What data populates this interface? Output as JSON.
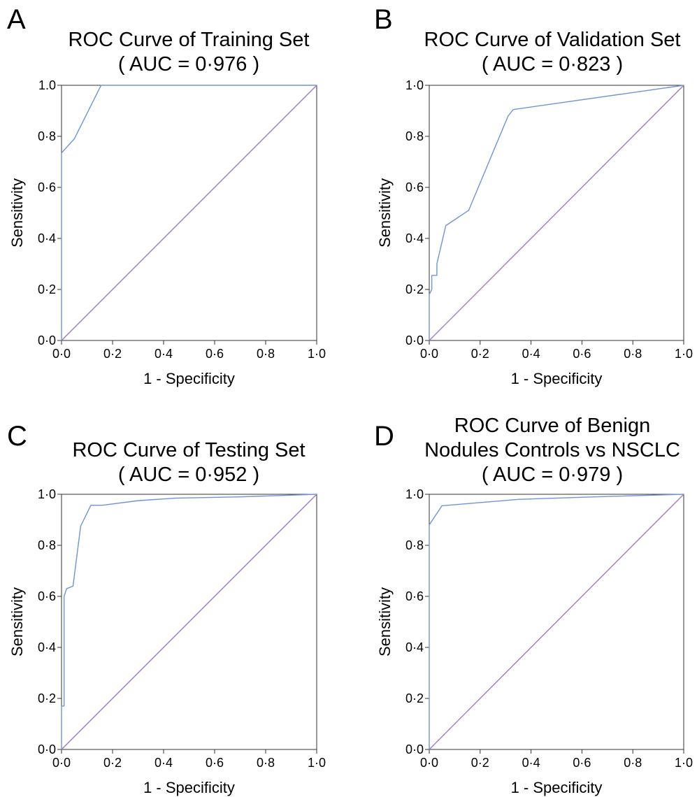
{
  "panels": [
    {
      "letter": "A",
      "title_lines": [
        "ROC Curve of Training Set",
        "( AUC = 0·976 )"
      ],
      "chart_data": {
        "type": "line",
        "title": "ROC Curve of Training Set ( AUC = 0·976 )",
        "xlabel": "1 - Specificity",
        "ylabel": "Sensitivity",
        "xlim": [
          0,
          1
        ],
        "ylim": [
          0,
          1
        ],
        "x_ticks": [
          "0·0",
          "0·2",
          "0·4",
          "0·6",
          "0·8",
          "1·0"
        ],
        "y_ticks": [
          "0·0",
          "0·2",
          "0·4",
          "0·6",
          "0·8",
          "1.0"
        ],
        "grid": false,
        "series": [
          {
            "color": "#6f95d6",
            "x": [
              0,
              0,
              0.05,
              0.155,
              0.3,
              1.0
            ],
            "y": [
              0,
              0.735,
              0.79,
              1.0,
              1.0,
              1.0
            ]
          },
          {
            "color": "#a07ac8",
            "x": [
              0,
              1
            ],
            "y": [
              0,
              1
            ]
          }
        ]
      }
    },
    {
      "letter": "B",
      "title_lines": [
        "ROC Curve of Validation Set",
        "( AUC = 0·823 )"
      ],
      "chart_data": {
        "type": "line",
        "title": "ROC Curve of Validation Set ( AUC = 0·823 )",
        "xlabel": "1 - Specificity",
        "ylabel": "Sensitivity",
        "xlim": [
          0,
          1
        ],
        "ylim": [
          0,
          1
        ],
        "x_ticks": [
          "0·0",
          "0·2",
          "0·4",
          "0·6",
          "0·8",
          "1·0"
        ],
        "y_ticks": [
          "0·0",
          "0·2",
          "0·4",
          "0·6",
          "0·8",
          "1·0"
        ],
        "grid": false,
        "series": [
          {
            "color": "#6f95d6",
            "x": [
              0,
              0,
              0.01,
              0.01,
              0.03,
              0.03,
              0.065,
              0.155,
              0.31,
              0.33,
              1.0
            ],
            "y": [
              0,
              0.18,
              0.2,
              0.255,
              0.255,
              0.3,
              0.45,
              0.51,
              0.88,
              0.905,
              1.0
            ]
          },
          {
            "color": "#a07ac8",
            "x": [
              0,
              1
            ],
            "y": [
              0,
              1
            ]
          }
        ]
      }
    },
    {
      "letter": "C",
      "title_lines": [
        "ROC Curve of Testing Set",
        "( AUC = 0·952 )"
      ],
      "chart_data": {
        "type": "line",
        "title": "ROC Curve of Testing Set ( AUC = 0·952 )",
        "xlabel": "1 - Specificity",
        "ylabel": "Sensitivity",
        "xlim": [
          0,
          1
        ],
        "ylim": [
          0,
          1
        ],
        "x_ticks": [
          "0·0",
          "0·2",
          "0·4",
          "0·6",
          "0·8",
          "1·0"
        ],
        "y_ticks": [
          "0·0",
          "0·2",
          "0·4",
          "0·6",
          "0·8",
          "1·0"
        ],
        "grid": false,
        "series": [
          {
            "color": "#6f95d6",
            "x": [
              0,
              0,
              0.01,
              0.01,
              0.02,
              0.02,
              0.045,
              0.075,
              0.115,
              0.16,
              0.3,
              0.45,
              0.7,
              1.0
            ],
            "y": [
              0,
              0.17,
              0.17,
              0.6,
              0.63,
              0.63,
              0.64,
              0.875,
              0.957,
              0.957,
              0.975,
              0.985,
              0.99,
              1.0
            ]
          },
          {
            "color": "#a07ac8",
            "x": [
              0,
              1
            ],
            "y": [
              0,
              1
            ]
          }
        ]
      }
    },
    {
      "letter": "D",
      "title_lines": [
        "ROC Curve of Benign",
        "Nodules Controls vs NSCLC",
        "( AUC = 0·979 )"
      ],
      "chart_data": {
        "type": "line",
        "title": "ROC Curve of Benign Nodules Controls vs NSCLC ( AUC = 0·979 )",
        "xlabel": "1 - Specificity",
        "ylabel": "Sensitivity",
        "xlim": [
          0,
          1
        ],
        "ylim": [
          0,
          1
        ],
        "x_ticks": [
          "0·0",
          "0·2",
          "0·4",
          "0·6",
          "0·8",
          "1·0"
        ],
        "y_ticks": [
          "0·0",
          "0·2",
          "0·4",
          "0·6",
          "0·8",
          "1·0"
        ],
        "grid": false,
        "series": [
          {
            "color": "#6f95d6",
            "x": [
              0,
              0,
              0.05,
              0.35,
              0.65,
              1.0
            ],
            "y": [
              0,
              0.88,
              0.955,
              0.98,
              0.99,
              1.0
            ]
          },
          {
            "color": "#a07ac8",
            "x": [
              0,
              1
            ],
            "y": [
              0,
              1
            ]
          }
        ]
      }
    }
  ]
}
